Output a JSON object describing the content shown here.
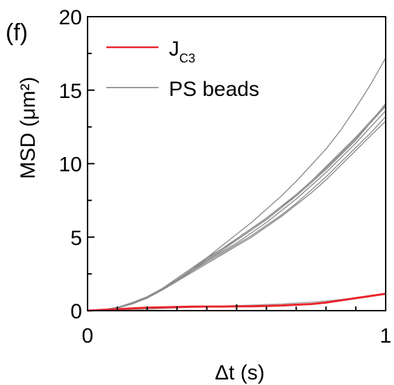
{
  "panel_label": "(f)",
  "chart_data": {
    "type": "line",
    "title": "",
    "xlabel": "Δt (s)",
    "ylabel": "MSD (μm²)",
    "xlim": [
      0,
      1
    ],
    "ylim": [
      0,
      20
    ],
    "xticks": [
      0,
      1
    ],
    "yticks": [
      0,
      5,
      10,
      15,
      20
    ],
    "grid": false,
    "legend_position": "top-left",
    "legend": [
      {
        "label_main": "J",
        "label_sub": "C3",
        "color": "#e8232a"
      },
      {
        "label_main": "PS beads",
        "label_sub": "",
        "color": "#8c8c8c"
      }
    ],
    "x": [
      0,
      0.05,
      0.1,
      0.15,
      0.2,
      0.25,
      0.3,
      0.35,
      0.4,
      0.45,
      0.5,
      0.55,
      0.6,
      0.65,
      0.7,
      0.75,
      0.8,
      0.85,
      0.9,
      0.95,
      1.0
    ],
    "series": [
      {
        "group": "JC3",
        "color": "#e8232a",
        "values": [
          0,
          0.05,
          0.1,
          0.15,
          0.2,
          0.22,
          0.25,
          0.27,
          0.28,
          0.28,
          0.3,
          0.3,
          0.32,
          0.35,
          0.4,
          0.45,
          0.55,
          0.7,
          0.85,
          1.0,
          1.15
        ]
      },
      {
        "group": "PS beads",
        "color": "#8c8c8c",
        "values": [
          0,
          0.05,
          0.2,
          0.5,
          0.9,
          1.4,
          2.0,
          2.8,
          3.6,
          4.4,
          5.2,
          6.0,
          6.9,
          7.8,
          8.8,
          9.9,
          11.0,
          12.3,
          13.8,
          15.4,
          17.2
        ]
      },
      {
        "group": "PS beads",
        "color": "#8c8c8c",
        "values": [
          0,
          0.04,
          0.2,
          0.5,
          0.9,
          1.5,
          2.2,
          2.9,
          3.6,
          4.2,
          4.8,
          5.5,
          6.2,
          7.0,
          7.8,
          8.7,
          9.6,
          10.6,
          11.6,
          12.8,
          14.1
        ]
      },
      {
        "group": "PS beads",
        "color": "#8c8c8c",
        "values": [
          0,
          0.05,
          0.22,
          0.55,
          0.95,
          1.5,
          2.1,
          2.8,
          3.4,
          4.0,
          4.6,
          5.3,
          6.0,
          6.8,
          7.6,
          8.5,
          9.4,
          10.4,
          11.4,
          12.5,
          13.6
        ]
      },
      {
        "group": "PS beads",
        "color": "#8c8c8c",
        "values": [
          0,
          0.04,
          0.18,
          0.45,
          0.85,
          1.4,
          2.0,
          2.7,
          3.4,
          4.1,
          4.8,
          5.5,
          6.2,
          7.0,
          7.9,
          8.8,
          9.7,
          10.7,
          11.7,
          12.8,
          13.9
        ]
      },
      {
        "group": "PS beads",
        "color": "#8c8c8c",
        "values": [
          0,
          0.05,
          0.2,
          0.5,
          0.9,
          1.45,
          2.05,
          2.7,
          3.3,
          3.9,
          4.5,
          5.1,
          5.8,
          6.5,
          7.3,
          8.2,
          9.1,
          10.1,
          11.1,
          12.1,
          13.2
        ]
      },
      {
        "group": "PS beads",
        "color": "#8c8c8c",
        "values": [
          0,
          0.04,
          0.18,
          0.48,
          0.88,
          1.4,
          2.0,
          2.6,
          3.2,
          3.8,
          4.4,
          5.0,
          5.7,
          6.4,
          7.2,
          8.0,
          8.9,
          9.9,
          10.9,
          11.9,
          12.9
        ]
      },
      {
        "group": "PS beads",
        "color": "#8c8c8c",
        "values": [
          0,
          0.05,
          0.21,
          0.52,
          0.92,
          1.45,
          2.1,
          2.8,
          3.5,
          4.2,
          4.9,
          5.6,
          6.3,
          7.1,
          7.9,
          8.8,
          9.8,
          10.8,
          11.8,
          12.9,
          14.0
        ]
      },
      {
        "group": "PS beads",
        "color": "#aaaaaa",
        "values": [
          0,
          0.01,
          0.03,
          0.06,
          0.1,
          0.14,
          0.18,
          0.22,
          0.26,
          0.3,
          0.34,
          0.38,
          0.42,
          0.46,
          0.52,
          0.58,
          0.66,
          0.76,
          0.88,
          1.02,
          1.18
        ]
      }
    ]
  }
}
